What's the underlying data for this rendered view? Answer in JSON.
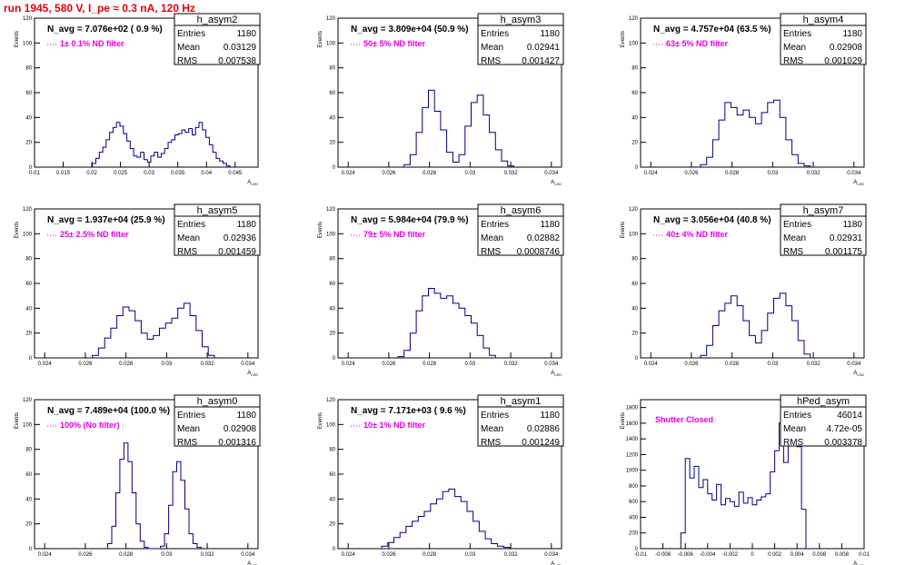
{
  "run_title": "run 1945,   580 V, I_pe ≈ 0.3 nA, 120 Hz",
  "stats_labels": {
    "entries": "Entries",
    "mean": "Mean",
    "rms": "RMS"
  },
  "colors": {
    "run_title": "#e8000b",
    "histogram_line": "#00007f",
    "filter_text": "#e400e4"
  },
  "chart_data": [
    {
      "type": "histogram",
      "name": "h_asym2",
      "stats": {
        "entries": "1180",
        "mean": "0.03129",
        "rms": "0.007538"
      },
      "n_avg_text": "N_avg = 7.076e+02 ( 0.9 %)",
      "filter_text": "1± 0.1% ND filter",
      "xlabel": "A_LED",
      "ylabel": "Events",
      "xlim": [
        0.01,
        0.049
      ],
      "ylim": [
        0,
        120
      ],
      "xticks": [
        0.01,
        0.015,
        0.02,
        0.025,
        0.03,
        0.035,
        0.04,
        0.045
      ],
      "xtick_labels": [
        "0.01",
        "0.015",
        "0.02",
        "0.025",
        "0.03",
        "0.035",
        "0.04",
        "0.045"
      ],
      "yticks": [
        0,
        20,
        40,
        60,
        80,
        100,
        120
      ],
      "x": [
        0.0198,
        0.0204,
        0.021,
        0.0216,
        0.0222,
        0.0228,
        0.0234,
        0.024,
        0.0246,
        0.0252,
        0.0258,
        0.0264,
        0.027,
        0.0276,
        0.0282,
        0.0288,
        0.0294,
        0.03,
        0.0306,
        0.0312,
        0.0318,
        0.0324,
        0.033,
        0.0336,
        0.0342,
        0.0348,
        0.0354,
        0.036,
        0.0366,
        0.0372,
        0.0378,
        0.0384,
        0.039,
        0.0396,
        0.0402,
        0.0408,
        0.0414,
        0.042,
        0.0426,
        0.0432,
        0.0438,
        0.0444
      ],
      "y": [
        0,
        3,
        7,
        12,
        16,
        22,
        28,
        32,
        36,
        33,
        27,
        21,
        15,
        9,
        8,
        12,
        6,
        4,
        9,
        12,
        8,
        11,
        15,
        20,
        22,
        26,
        27,
        30,
        28,
        31,
        26,
        32,
        36,
        30,
        24,
        18,
        12,
        7,
        5,
        3,
        1,
        0
      ]
    },
    {
      "type": "histogram",
      "name": "h_asym3",
      "stats": {
        "entries": "1180",
        "mean": "0.02941",
        "rms": "0.001427"
      },
      "n_avg_text": "N_avg = 3.809e+04 (50.9 %)",
      "filter_text": "50± 5% ND filter",
      "xlabel": "A_LED",
      "ylabel": "Events",
      "xlim": [
        0.0235,
        0.0345
      ],
      "ylim": [
        0,
        120
      ],
      "xticks": [
        0.024,
        0.026,
        0.028,
        0.03,
        0.032,
        0.034
      ],
      "xtick_labels": [
        "0.024",
        "0.026",
        "0.028",
        "0.03",
        "0.032",
        "0.034"
      ],
      "yticks": [
        0,
        20,
        40,
        60,
        80,
        100,
        120
      ],
      "x": [
        0.0269,
        0.0272,
        0.0275,
        0.0278,
        0.0281,
        0.0284,
        0.0287,
        0.029,
        0.0293,
        0.0296,
        0.0299,
        0.0302,
        0.0305,
        0.0308,
        0.0311,
        0.0314,
        0.0317,
        0.032
      ],
      "y": [
        2,
        10,
        28,
        48,
        62,
        45,
        30,
        12,
        4,
        10,
        33,
        52,
        58,
        42,
        28,
        14,
        5,
        1
      ]
    },
    {
      "type": "histogram",
      "name": "h_asym4",
      "stats": {
        "entries": "1180",
        "mean": "0.02908",
        "rms": "0.001029"
      },
      "n_avg_text": "N_avg = 4.757e+04 (63.5 %)",
      "filter_text": "63± 5% ND filter",
      "xlabel": "A_LED",
      "ylabel": "Events",
      "xlim": [
        0.0235,
        0.0345
      ],
      "ylim": [
        0,
        120
      ],
      "xticks": [
        0.024,
        0.026,
        0.028,
        0.03,
        0.032,
        0.034
      ],
      "xtick_labels": [
        "0.024",
        "0.026",
        "0.028",
        "0.03",
        "0.032",
        "0.034"
      ],
      "yticks": [
        0,
        20,
        40,
        60,
        80,
        100,
        120
      ],
      "x": [
        0.0266,
        0.0269,
        0.0272,
        0.0275,
        0.0278,
        0.0281,
        0.0284,
        0.0287,
        0.029,
        0.0293,
        0.0296,
        0.0299,
        0.0302,
        0.0305,
        0.0308,
        0.0311,
        0.0314,
        0.0317
      ],
      "y": [
        2,
        8,
        22,
        38,
        52,
        48,
        42,
        46,
        40,
        35,
        44,
        52,
        54,
        40,
        22,
        10,
        3,
        1
      ]
    },
    {
      "type": "histogram",
      "name": "h_asym5",
      "stats": {
        "entries": "1180",
        "mean": "0.02936",
        "rms": "0.001459"
      },
      "n_avg_text": "N_avg = 1.937e+04 (25.9 %)",
      "filter_text": "25± 2.5% ND filter",
      "xlabel": "A_LED",
      "ylabel": "Events",
      "xlim": [
        0.0235,
        0.0345
      ],
      "ylim": [
        0,
        120
      ],
      "xticks": [
        0.024,
        0.026,
        0.028,
        0.03,
        0.032,
        0.034
      ],
      "xtick_labels": [
        "0.024",
        "0.026",
        "0.028",
        "0.03",
        "0.032",
        "0.034"
      ],
      "yticks": [
        0,
        20,
        40,
        60,
        80,
        100,
        120
      ],
      "x": [
        0.0265,
        0.0268,
        0.0271,
        0.0274,
        0.0277,
        0.028,
        0.0283,
        0.0286,
        0.0289,
        0.0292,
        0.0295,
        0.0298,
        0.0301,
        0.0304,
        0.0307,
        0.031,
        0.0313,
        0.0316,
        0.0319,
        0.0322
      ],
      "y": [
        2,
        8,
        16,
        24,
        34,
        41,
        38,
        30,
        20,
        15,
        18,
        24,
        28,
        32,
        40,
        44,
        34,
        22,
        9,
        2
      ]
    },
    {
      "type": "histogram",
      "name": "h_asym6",
      "stats": {
        "entries": "1180",
        "mean": "0.02882",
        "rms": "0.0008746"
      },
      "n_avg_text": "N_avg = 5.984e+04 (79.9 %)",
      "filter_text": "79± 5% ND filter",
      "xlabel": "A_LED",
      "ylabel": "Events",
      "xlim": [
        0.0235,
        0.0345
      ],
      "ylim": [
        0,
        120
      ],
      "xticks": [
        0.024,
        0.026,
        0.028,
        0.03,
        0.032,
        0.034
      ],
      "xtick_labels": [
        "0.024",
        "0.026",
        "0.028",
        "0.03",
        "0.032",
        "0.034"
      ],
      "yticks": [
        0,
        20,
        40,
        60,
        80,
        100,
        120
      ],
      "x": [
        0.0266,
        0.0269,
        0.0272,
        0.0275,
        0.0278,
        0.0281,
        0.0284,
        0.0287,
        0.029,
        0.0293,
        0.0296,
        0.0299,
        0.0302,
        0.0305,
        0.0308,
        0.0311
      ],
      "y": [
        1,
        6,
        20,
        38,
        50,
        56,
        52,
        48,
        50,
        44,
        40,
        34,
        28,
        18,
        8,
        2
      ]
    },
    {
      "type": "histogram",
      "name": "h_asym7",
      "stats": {
        "entries": "1180",
        "mean": "0.02931",
        "rms": "0.001175"
      },
      "n_avg_text": "N_avg = 3.056e+04 (40.8 %)",
      "filter_text": "40± 4% ND filter",
      "xlabel": "A_LED",
      "ylabel": "Events",
      "xlim": [
        0.0235,
        0.0345
      ],
      "ylim": [
        0,
        120
      ],
      "xticks": [
        0.024,
        0.026,
        0.028,
        0.03,
        0.032,
        0.034
      ],
      "xtick_labels": [
        "0.024",
        "0.026",
        "0.028",
        "0.03",
        "0.032",
        "0.034"
      ],
      "yticks": [
        0,
        20,
        40,
        60,
        80,
        100,
        120
      ],
      "x": [
        0.0266,
        0.0269,
        0.0272,
        0.0275,
        0.0278,
        0.0281,
        0.0284,
        0.0287,
        0.029,
        0.0293,
        0.0296,
        0.0299,
        0.0302,
        0.0305,
        0.0308,
        0.0311,
        0.0314,
        0.0317
      ],
      "y": [
        2,
        10,
        26,
        38,
        44,
        50,
        42,
        30,
        18,
        12,
        22,
        36,
        48,
        52,
        42,
        30,
        14,
        3
      ]
    },
    {
      "type": "histogram",
      "name": "h_asym0",
      "stats": {
        "entries": "1180",
        "mean": "0.02908",
        "rms": "0.001316"
      },
      "n_avg_text": "N_avg = 7.489e+04 (100.0 %)",
      "filter_text": "100% (No filter)",
      "xlabel": "A_LED",
      "ylabel": "Events",
      "xlim": [
        0.0235,
        0.0345
      ],
      "ylim": [
        0,
        120
      ],
      "xticks": [
        0.024,
        0.026,
        0.028,
        0.03,
        0.032,
        0.034
      ],
      "xtick_labels": [
        "0.024",
        "0.026",
        "0.028",
        "0.03",
        "0.032",
        "0.034"
      ],
      "yticks": [
        0,
        20,
        40,
        60,
        80,
        100,
        120
      ],
      "x": [
        0.0272,
        0.0274,
        0.0276,
        0.0278,
        0.028,
        0.0282,
        0.0284,
        0.0286,
        0.0288,
        0.029,
        0.0292,
        0.0294,
        0.0296,
        0.0298,
        0.03,
        0.0302,
        0.0304,
        0.0306,
        0.0308,
        0.031,
        0.0312,
        0.0314,
        0.0316
      ],
      "y": [
        4,
        18,
        45,
        72,
        85,
        70,
        45,
        20,
        6,
        1,
        0,
        0,
        0,
        2,
        12,
        35,
        62,
        70,
        55,
        32,
        12,
        4,
        1
      ]
    },
    {
      "type": "histogram",
      "name": "h_asym1",
      "stats": {
        "entries": "1180",
        "mean": "0.02886",
        "rms": "0.001249"
      },
      "n_avg_text": "N_avg = 7.171e+03 ( 9.6 %)",
      "filter_text": "10± 1% ND filter",
      "xlabel": "A_LED",
      "ylabel": "Events",
      "xlim": [
        0.0235,
        0.0345
      ],
      "ylim": [
        0,
        120
      ],
      "xticks": [
        0.024,
        0.026,
        0.028,
        0.03,
        0.032,
        0.034
      ],
      "xtick_labels": [
        "0.024",
        "0.026",
        "0.028",
        "0.03",
        "0.032",
        "0.034"
      ],
      "yticks": [
        0,
        20,
        40,
        60,
        80,
        100,
        120
      ],
      "x": [
        0.0258,
        0.0261,
        0.0264,
        0.0267,
        0.027,
        0.0273,
        0.0276,
        0.0279,
        0.0282,
        0.0285,
        0.0288,
        0.0291,
        0.0294,
        0.0297,
        0.03,
        0.0303,
        0.0306,
        0.0309,
        0.0312,
        0.0315,
        0.0318
      ],
      "y": [
        2,
        5,
        9,
        13,
        18,
        22,
        26,
        30,
        36,
        40,
        46,
        48,
        42,
        38,
        30,
        22,
        14,
        8,
        4,
        2,
        1
      ]
    },
    {
      "type": "histogram",
      "name": "hPed_asym",
      "stats": {
        "entries": "46014",
        "mean": "4.72e-05",
        "rms": "0.003378"
      },
      "n_avg_text": "",
      "filter_text": "Shutter Closed",
      "xlabel": "A_LED",
      "ylabel": "Events",
      "xlim": [
        -0.01,
        0.01
      ],
      "ylim": [
        0,
        1900
      ],
      "xticks": [
        -0.01,
        -0.008,
        -0.006,
        -0.004,
        -0.002,
        0,
        0.002,
        0.004,
        0.006,
        0.008,
        0.01
      ],
      "xtick_labels": [
        "-0.01",
        "-0.008",
        "-0.006",
        "-0.004",
        "-0.002",
        "0",
        "0.002",
        "0.004",
        "0.006",
        "0.008",
        "0.01"
      ],
      "yticks": [
        0,
        200,
        400,
        600,
        800,
        1000,
        1200,
        1400,
        1600,
        1800
      ],
      "x": [
        -0.0062,
        -0.0058,
        -0.0054,
        -0.005,
        -0.0046,
        -0.0042,
        -0.0038,
        -0.0034,
        -0.003,
        -0.0026,
        -0.0022,
        -0.0018,
        -0.0014,
        -0.001,
        -0.0006,
        -0.0002,
        0.0002,
        0.0006,
        0.001,
        0.0014,
        0.0018,
        0.0022,
        0.0026,
        0.003,
        0.0034,
        0.0038,
        0.0042,
        0.0046,
        0.005
      ],
      "y": [
        200,
        1150,
        900,
        1050,
        780,
        880,
        700,
        620,
        820,
        560,
        640,
        600,
        540,
        720,
        580,
        650,
        560,
        620,
        660,
        700,
        980,
        1250,
        1600,
        1100,
        1400,
        1900,
        1300,
        500,
        0
      ]
    }
  ]
}
